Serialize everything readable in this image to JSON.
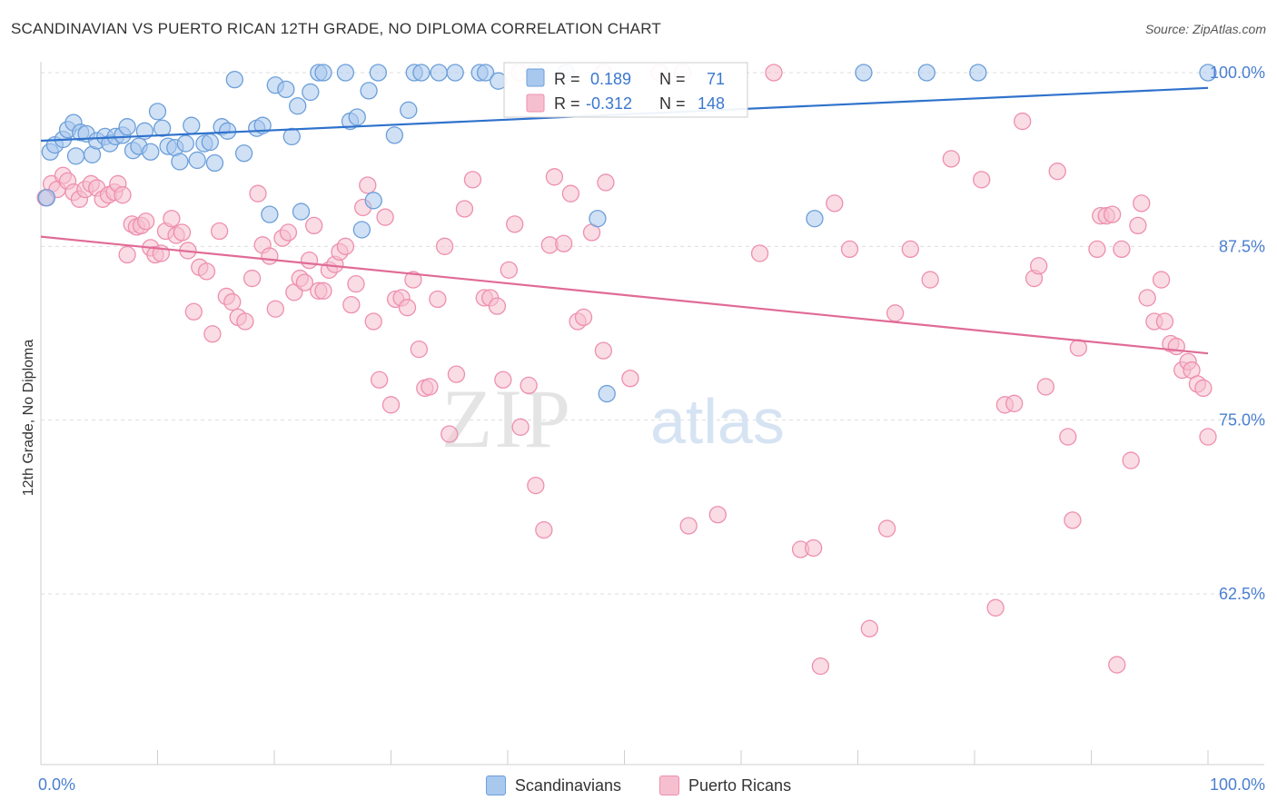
{
  "title": "SCANDINAVIAN VS PUERTO RICAN 12TH GRADE, NO DIPLOMA CORRELATION CHART",
  "source": "Source: ZipAtlas.com",
  "watermark": {
    "part1": "ZIP",
    "part2": "atlas"
  },
  "colors": {
    "blue_fill": "#a9c8ee",
    "blue_stroke": "#6c9fd9",
    "blue_line": "#2f72cc",
    "pink_fill": "#f6bfd0",
    "pink_stroke": "#ee8fae",
    "pink_line": "#e06b96",
    "tick_label": "#4a7fd0",
    "grid": "#dddddd"
  },
  "legend": {
    "rows": [
      {
        "r_label": "R =",
        "r_value": " 0.189",
        "n_label": "N =",
        "n_value": " 71"
      },
      {
        "r_label": "R =",
        "r_value": "-0.312",
        "n_label": "N =",
        "n_value": "148"
      }
    ]
  },
  "bottom_legend": {
    "series1": "Scandinavians",
    "series2": "Puerto Ricans"
  },
  "chart_data": {
    "type": "scatter",
    "title": "SCANDINAVIAN VS PUERTO RICAN 12TH GRADE, NO DIPLOMA CORRELATION CHART",
    "xlabel": "",
    "ylabel": "12th Grade, No Diploma",
    "xlim": [
      0,
      100
    ],
    "ylim": [
      50,
      100.5
    ],
    "x_tick_labels": [
      "0.0%",
      "100.0%"
    ],
    "y_ticks": [
      62.5,
      75.0,
      87.5,
      100.0
    ],
    "y_tick_labels": [
      "62.5%",
      "75.0%",
      "87.5%",
      "100.0%"
    ],
    "grid": true,
    "series": [
      {
        "name": "Scandinavians",
        "r": 0.189,
        "n": 71,
        "trend": {
          "x": [
            0,
            100
          ],
          "y": [
            95.1,
            98.9
          ]
        },
        "points": [
          [
            0.8,
            94.3
          ],
          [
            1.2,
            94.8
          ],
          [
            1.9,
            95.2
          ],
          [
            2.3,
            95.9
          ],
          [
            2.8,
            96.4
          ],
          [
            3.4,
            95.7
          ],
          [
            3.9,
            95.6
          ],
          [
            4.4,
            94.1
          ],
          [
            4.8,
            95.1
          ],
          [
            5.5,
            95.4
          ],
          [
            5.9,
            94.9
          ],
          [
            6.4,
            95.4
          ],
          [
            7.0,
            95.5
          ],
          [
            7.4,
            96.1
          ],
          [
            7.9,
            94.4
          ],
          [
            8.4,
            94.7
          ],
          [
            8.9,
            95.8
          ],
          [
            9.4,
            94.3
          ],
          [
            10.0,
            97.2
          ],
          [
            10.4,
            96.0
          ],
          [
            10.9,
            94.7
          ],
          [
            11.5,
            94.6
          ],
          [
            11.9,
            93.6
          ],
          [
            12.4,
            94.9
          ],
          [
            12.9,
            96.2
          ],
          [
            13.4,
            93.7
          ],
          [
            14.0,
            94.9
          ],
          [
            14.5,
            95.0
          ],
          [
            14.9,
            93.5
          ],
          [
            15.5,
            96.1
          ],
          [
            16.0,
            95.8
          ],
          [
            16.6,
            99.5
          ],
          [
            17.4,
            94.2
          ],
          [
            18.5,
            96.0
          ],
          [
            19.0,
            96.2
          ],
          [
            19.6,
            89.8
          ],
          [
            20.1,
            99.1
          ],
          [
            21.0,
            98.8
          ],
          [
            21.5,
            95.4
          ],
          [
            22.0,
            97.6
          ],
          [
            22.3,
            90.0
          ],
          [
            23.1,
            98.6
          ],
          [
            23.8,
            100.0
          ],
          [
            24.2,
            100.0
          ],
          [
            26.1,
            100.0
          ],
          [
            26.5,
            96.5
          ],
          [
            27.1,
            96.8
          ],
          [
            27.5,
            88.7
          ],
          [
            28.1,
            98.7
          ],
          [
            28.5,
            90.8
          ],
          [
            28.9,
            100.0
          ],
          [
            30.3,
            95.5
          ],
          [
            31.5,
            97.3
          ],
          [
            32.0,
            100.0
          ],
          [
            32.6,
            100.0
          ],
          [
            34.1,
            100.0
          ],
          [
            35.5,
            100.0
          ],
          [
            37.6,
            100.0
          ],
          [
            38.1,
            100.0
          ],
          [
            39.2,
            99.4
          ],
          [
            42.3,
            100.0
          ],
          [
            45.0,
            100.0
          ],
          [
            47.7,
            89.5
          ],
          [
            48.5,
            76.9
          ],
          [
            66.3,
            89.5
          ],
          [
            70.5,
            100.0
          ],
          [
            75.9,
            100.0
          ],
          [
            80.3,
            100.0
          ],
          [
            100.0,
            100.0
          ],
          [
            0.5,
            91.0
          ],
          [
            3.0,
            94.0
          ]
        ]
      },
      {
        "name": "Puerto Ricans",
        "r": -0.312,
        "n": 148,
        "trend": {
          "x": [
            0,
            100
          ],
          "y": [
            88.2,
            79.8
          ]
        },
        "points": [
          [
            0.4,
            91.0
          ],
          [
            0.9,
            92.0
          ],
          [
            1.4,
            91.6
          ],
          [
            1.9,
            92.6
          ],
          [
            2.3,
            92.2
          ],
          [
            2.8,
            91.4
          ],
          [
            3.3,
            90.9
          ],
          [
            3.8,
            91.6
          ],
          [
            4.3,
            92.0
          ],
          [
            4.8,
            91.7
          ],
          [
            5.3,
            90.9
          ],
          [
            5.8,
            91.2
          ],
          [
            6.3,
            91.4
          ],
          [
            6.6,
            92.0
          ],
          [
            7.0,
            91.2
          ],
          [
            7.4,
            86.9
          ],
          [
            7.8,
            89.1
          ],
          [
            8.2,
            88.9
          ],
          [
            8.6,
            89.0
          ],
          [
            9.0,
            89.3
          ],
          [
            9.4,
            87.4
          ],
          [
            9.8,
            86.9
          ],
          [
            10.3,
            87.0
          ],
          [
            10.7,
            88.6
          ],
          [
            11.2,
            89.5
          ],
          [
            11.6,
            88.3
          ],
          [
            12.1,
            88.5
          ],
          [
            12.6,
            87.2
          ],
          [
            13.1,
            82.8
          ],
          [
            13.6,
            86.0
          ],
          [
            14.2,
            85.7
          ],
          [
            14.7,
            81.2
          ],
          [
            15.3,
            88.6
          ],
          [
            15.9,
            83.9
          ],
          [
            16.4,
            83.5
          ],
          [
            16.9,
            82.4
          ],
          [
            17.5,
            82.1
          ],
          [
            18.1,
            85.2
          ],
          [
            18.6,
            91.3
          ],
          [
            19.0,
            87.6
          ],
          [
            19.6,
            86.8
          ],
          [
            20.1,
            83.0
          ],
          [
            20.7,
            88.1
          ],
          [
            21.2,
            88.5
          ],
          [
            21.7,
            84.2
          ],
          [
            22.2,
            85.2
          ],
          [
            22.6,
            84.9
          ],
          [
            23.0,
            86.5
          ],
          [
            23.4,
            89.0
          ],
          [
            23.8,
            84.3
          ],
          [
            24.2,
            84.3
          ],
          [
            24.7,
            85.8
          ],
          [
            25.2,
            86.2
          ],
          [
            25.6,
            87.1
          ],
          [
            26.1,
            87.5
          ],
          [
            26.6,
            83.3
          ],
          [
            27.0,
            84.8
          ],
          [
            27.6,
            90.3
          ],
          [
            28.0,
            91.9
          ],
          [
            28.5,
            82.1
          ],
          [
            29.0,
            77.9
          ],
          [
            29.5,
            89.6
          ],
          [
            30.0,
            76.1
          ],
          [
            30.4,
            83.7
          ],
          [
            30.9,
            83.8
          ],
          [
            31.4,
            83.1
          ],
          [
            31.9,
            85.1
          ],
          [
            32.4,
            80.1
          ],
          [
            32.9,
            77.3
          ],
          [
            33.3,
            77.4
          ],
          [
            34.0,
            83.7
          ],
          [
            34.6,
            87.5
          ],
          [
            35.0,
            74.0
          ],
          [
            35.6,
            78.3
          ],
          [
            36.3,
            90.2
          ],
          [
            37.0,
            92.3
          ],
          [
            38.0,
            83.8
          ],
          [
            38.5,
            83.8
          ],
          [
            39.1,
            83.2
          ],
          [
            39.6,
            77.9
          ],
          [
            40.1,
            85.8
          ],
          [
            40.6,
            89.1
          ],
          [
            41.1,
            74.5
          ],
          [
            41.8,
            77.5
          ],
          [
            42.4,
            70.3
          ],
          [
            43.1,
            67.1
          ],
          [
            43.6,
            87.6
          ],
          [
            44.0,
            92.5
          ],
          [
            44.8,
            87.7
          ],
          [
            45.4,
            91.3
          ],
          [
            46.0,
            82.1
          ],
          [
            46.5,
            82.4
          ],
          [
            47.2,
            88.5
          ],
          [
            48.2,
            80.0
          ],
          [
            48.4,
            92.1
          ],
          [
            50.5,
            78.0
          ],
          [
            53.0,
            100.0
          ],
          [
            55.5,
            67.4
          ],
          [
            58.0,
            68.2
          ],
          [
            61.6,
            87.0
          ],
          [
            62.8,
            100.0
          ],
          [
            65.1,
            65.7
          ],
          [
            66.2,
            65.8
          ],
          [
            66.8,
            57.3
          ],
          [
            68.0,
            90.6
          ],
          [
            69.3,
            87.3
          ],
          [
            71.0,
            60.0
          ],
          [
            72.5,
            67.2
          ],
          [
            73.2,
            82.7
          ],
          [
            74.5,
            87.3
          ],
          [
            76.2,
            85.1
          ],
          [
            78.0,
            93.8
          ],
          [
            80.6,
            92.3
          ],
          [
            81.8,
            61.5
          ],
          [
            82.6,
            76.1
          ],
          [
            83.4,
            76.2
          ],
          [
            84.1,
            96.5
          ],
          [
            85.1,
            85.2
          ],
          [
            85.5,
            86.1
          ],
          [
            86.1,
            77.4
          ],
          [
            87.1,
            92.9
          ],
          [
            88.0,
            73.8
          ],
          [
            88.4,
            67.8
          ],
          [
            88.9,
            80.2
          ],
          [
            90.5,
            87.3
          ],
          [
            90.8,
            89.7
          ],
          [
            91.3,
            89.7
          ],
          [
            91.8,
            89.8
          ],
          [
            92.2,
            57.4
          ],
          [
            92.6,
            87.3
          ],
          [
            93.4,
            72.1
          ],
          [
            94.0,
            89.0
          ],
          [
            94.3,
            90.6
          ],
          [
            94.8,
            83.8
          ],
          [
            95.4,
            82.1
          ],
          [
            96.0,
            85.1
          ],
          [
            96.3,
            82.1
          ],
          [
            96.8,
            80.5
          ],
          [
            97.3,
            80.3
          ],
          [
            97.8,
            78.6
          ],
          [
            98.3,
            79.2
          ],
          [
            98.6,
            78.6
          ],
          [
            99.1,
            77.6
          ],
          [
            99.6,
            77.3
          ],
          [
            100.0,
            73.8
          ],
          [
            41.0,
            100.0
          ],
          [
            48.2,
            100.0
          ],
          [
            55.0,
            100.0
          ]
        ]
      }
    ]
  }
}
